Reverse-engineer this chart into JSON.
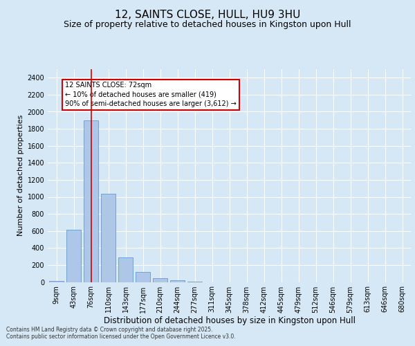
{
  "title": "12, SAINTS CLOSE, HULL, HU9 3HU",
  "subtitle": "Size of property relative to detached houses in Kingston upon Hull",
  "xlabel": "Distribution of detached houses by size in Kingston upon Hull",
  "ylabel": "Number of detached properties",
  "categories": [
    "9sqm",
    "43sqm",
    "76sqm",
    "110sqm",
    "143sqm",
    "177sqm",
    "210sqm",
    "244sqm",
    "277sqm",
    "311sqm",
    "345sqm",
    "378sqm",
    "412sqm",
    "445sqm",
    "479sqm",
    "512sqm",
    "546sqm",
    "579sqm",
    "613sqm",
    "646sqm",
    "680sqm"
  ],
  "values": [
    15,
    610,
    1900,
    1040,
    290,
    120,
    45,
    20,
    5,
    0,
    0,
    0,
    0,
    0,
    0,
    0,
    0,
    0,
    0,
    0,
    0
  ],
  "bar_color": "#aec6e8",
  "bar_edge_color": "#6699cc",
  "vline_x_idx": 2,
  "vline_color": "#cc0000",
  "annotation_line1": "12 SAINTS CLOSE: 72sqm",
  "annotation_line2": "← 10% of detached houses are smaller (419)",
  "annotation_line3": "90% of semi-detached houses are larger (3,612) →",
  "annotation_box_color": "#cc0000",
  "ylim": [
    0,
    2500
  ],
  "yticks": [
    0,
    200,
    400,
    600,
    800,
    1000,
    1200,
    1400,
    1600,
    1800,
    2000,
    2200,
    2400
  ],
  "background_color": "#d6e8f5",
  "axes_background_color": "#d6e8f5",
  "grid_color": "#ffffff",
  "title_fontsize": 11,
  "subtitle_fontsize": 9,
  "xlabel_fontsize": 8.5,
  "ylabel_fontsize": 8,
  "tick_fontsize": 7,
  "footer_line1": "Contains HM Land Registry data © Crown copyright and database right 2025.",
  "footer_line2": "Contains public sector information licensed under the Open Government Licence v3.0."
}
